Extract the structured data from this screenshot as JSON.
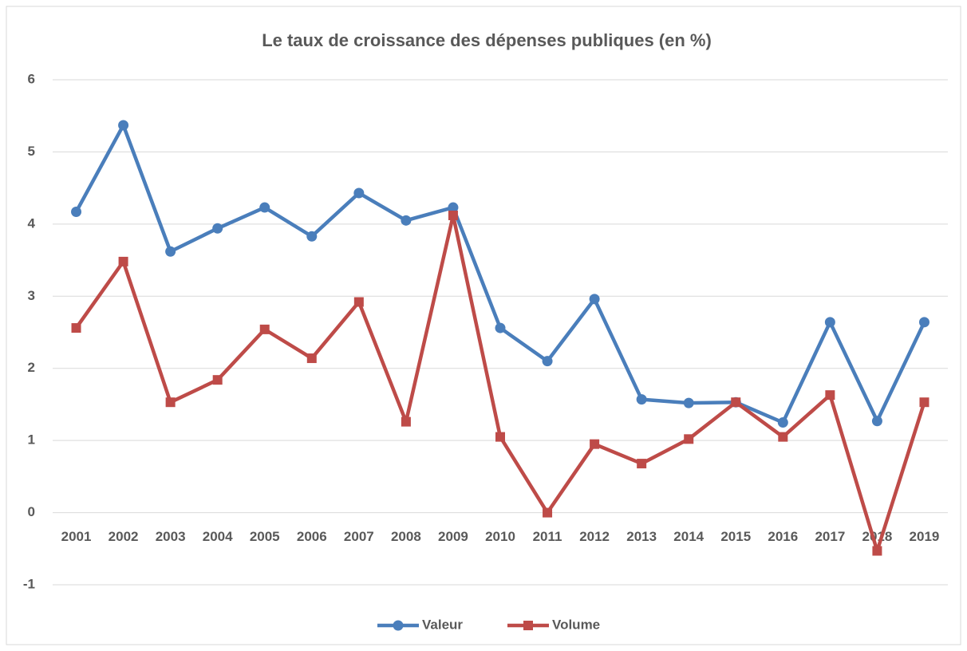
{
  "chart_data": {
    "type": "line",
    "title": "Le taux de croissance des dépenses publiques (en %)",
    "categories": [
      "2001",
      "2002",
      "2003",
      "2004",
      "2005",
      "2006",
      "2007",
      "2008",
      "2009",
      "2010",
      "2011",
      "2012",
      "2013",
      "2014",
      "2015",
      "2016",
      "2017",
      "2018",
      "2019"
    ],
    "series": [
      {
        "name": "Valeur",
        "color": "#4a7ebb",
        "marker": "circle",
        "values": [
          4.17,
          5.37,
          3.62,
          3.94,
          4.23,
          3.83,
          4.43,
          4.05,
          4.23,
          2.56,
          2.1,
          2.96,
          1.57,
          1.52,
          1.53,
          1.25,
          2.64,
          1.27,
          2.64
        ]
      },
      {
        "name": "Volume",
        "color": "#be4b48",
        "marker": "square",
        "values": [
          2.56,
          3.48,
          1.53,
          1.84,
          2.54,
          2.14,
          2.92,
          1.26,
          4.12,
          1.05,
          0,
          0.95,
          0.68,
          1.02,
          1.53,
          1.05,
          1.63,
          -0.53,
          1.53
        ]
      }
    ],
    "ylim": [
      -1,
      6
    ],
    "yticks": [
      -1,
      0,
      1,
      2,
      3,
      4,
      5,
      6
    ],
    "grid": true,
    "legend": "bottom"
  }
}
